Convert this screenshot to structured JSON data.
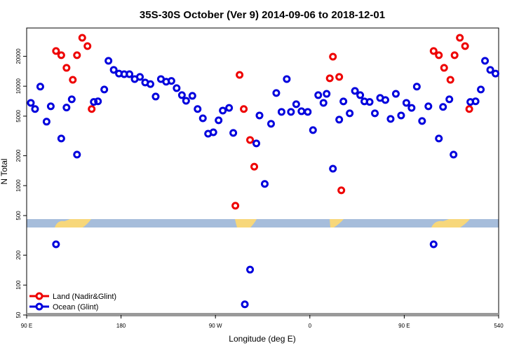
{
  "chart_data": {
    "type": "scatter",
    "title": "35S-30S October (Ver 9)   2014-09-06 to 2018-12-01",
    "x_label": "Longitude (deg E)",
    "y_label": "N Total",
    "log_y": true,
    "legend": "lower left",
    "xlim": [
      90,
      540
    ],
    "xticks": [
      {
        "value": 90,
        "label": "90 E"
      },
      180,
      {
        "value": 270,
        "label": "90 W"
      },
      {
        "value": 360,
        "label": "0"
      },
      {
        "value": 450,
        "label": "90 E"
      },
      540
    ],
    "ylim": [
      50,
      38500
    ],
    "yticks": [
      50,
      100,
      200,
      500,
      1000,
      2000,
      5000,
      10000,
      20000
    ],
    "series": [
      {
        "name": "Land (Nadir&Glint)",
        "color": "#ee0000",
        "x": [
          118,
          123,
          128,
          134,
          138,
          143,
          148,
          152,
          293,
          297,
          303,
          307,
          289,
          379,
          382,
          388,
          390,
          478,
          483,
          488,
          494,
          498,
          503,
          508,
          512
        ],
        "values": [
          22600,
          20500,
          15300,
          11600,
          20500,
          30700,
          25300,
          5900,
          13000,
          5900,
          2880,
          1550,
          628,
          12000,
          19800,
          12400,
          897,
          22600,
          20500,
          15300,
          11600,
          20500,
          30700,
          25300,
          5900
        ]
      },
      {
        "name": "Ocean (Glint)",
        "color": "#0000dd",
        "x": [
          94,
          98,
          103,
          109,
          113,
          118,
          123,
          128,
          133,
          138,
          154,
          158,
          164,
          168,
          173,
          178,
          183,
          188,
          193,
          198,
          203,
          208,
          213,
          218,
          223,
          228,
          233,
          238,
          242,
          248,
          253,
          258,
          263,
          268,
          273,
          277,
          283,
          287,
          298,
          303,
          309,
          312,
          317,
          323,
          328,
          333,
          338,
          342,
          347,
          352,
          358,
          363,
          368,
          373,
          376,
          382,
          388,
          392,
          398,
          403,
          408,
          412,
          417,
          422,
          427,
          432,
          437,
          442,
          447,
          452,
          457,
          462,
          467,
          473,
          478,
          483,
          487,
          493,
          497,
          513,
          518,
          523,
          527,
          532,
          537
        ],
        "values": [
          6800,
          5900,
          9900,
          4400,
          6280,
          257,
          2980,
          6100,
          7380,
          2050,
          6950,
          7050,
          9260,
          18000,
          14600,
          13400,
          13200,
          13200,
          11800,
          12400,
          10900,
          10500,
          7870,
          11800,
          11100,
          11300,
          9560,
          8130,
          7140,
          8000,
          5900,
          4760,
          3330,
          3440,
          4540,
          5690,
          6050,
          3390,
          64,
          143,
          2660,
          5080,
          1040,
          4190,
          8540,
          5520,
          11800,
          5520,
          6590,
          5600,
          5520,
          3620,
          8130,
          6800,
          8380,
          1480,
          4610,
          7030,
          5340,
          8970,
          8130,
          7030,
          6950,
          5340,
          7620,
          7260,
          4690,
          8380,
          5080,
          6800,
          6050,
          9900,
          4470,
          6280,
          257,
          2980,
          6190,
          7380,
          2050,
          6950,
          7050,
          9260,
          18000,
          14600,
          13400
        ]
      }
    ]
  }
}
